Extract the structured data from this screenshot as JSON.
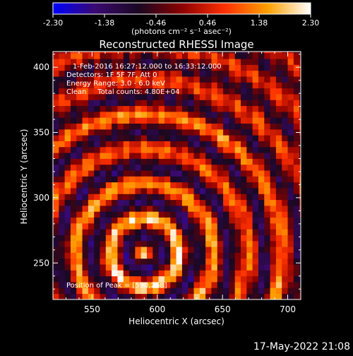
{
  "colorbar": {
    "ticks": [
      "-2.30",
      "-1.38",
      "-0.46",
      "0.46",
      "1.38",
      "2.30"
    ],
    "unit_label": "(photons cm⁻² s⁻¹ asec⁻²)",
    "colors": [
      "#0000ff",
      "#3a0a6e",
      "#1a0822",
      "#8b0000",
      "#ff3000",
      "#ffa000",
      "#ffffff"
    ]
  },
  "plot": {
    "title": "Reconstructed RHESSI Image",
    "annotations": [
      "1-Feb-2016 16:27:12.000 to 16:33:12.000",
      "Detectors: 1F 5F 7F, Att 0",
      "Energy Range: 3.0 - 6.0 keV",
      "Clean     Total counts: 4.80E+04"
    ],
    "peak_label": "Position of Peak = [590,258]"
  },
  "footer": {
    "timestamp": "17-May-2022 21:08"
  },
  "chart_data": {
    "type": "heatmap",
    "title": "Reconstructed RHESSI Image",
    "xlabel": "Heliocentric X (arcsec)",
    "ylabel": "Heliocentric Y (arcsec)",
    "xlim": [
      520,
      710
    ],
    "ylim": [
      222,
      412
    ],
    "xticks": [
      550,
      600,
      650,
      700
    ],
    "yticks": [
      250,
      300,
      350,
      400
    ],
    "color_range": [
      -2.3,
      2.3
    ],
    "peak": {
      "x": 590,
      "y": 258
    },
    "fringe_pattern": {
      "center_x": 590,
      "center_y": 258,
      "period_arcsec": 26.5,
      "bands": [
        {
          "radius": 8,
          "peak_value": 2.3
        },
        {
          "radius": 34,
          "peak_value": 1.8
        },
        {
          "radius": 60,
          "peak_value": 1.45
        },
        {
          "radius": 87,
          "peak_value": 1.1
        },
        {
          "radius": 113,
          "peak_value": 1.6
        },
        {
          "radius": 140,
          "peak_value": 1.05
        }
      ]
    },
    "grid": false
  }
}
